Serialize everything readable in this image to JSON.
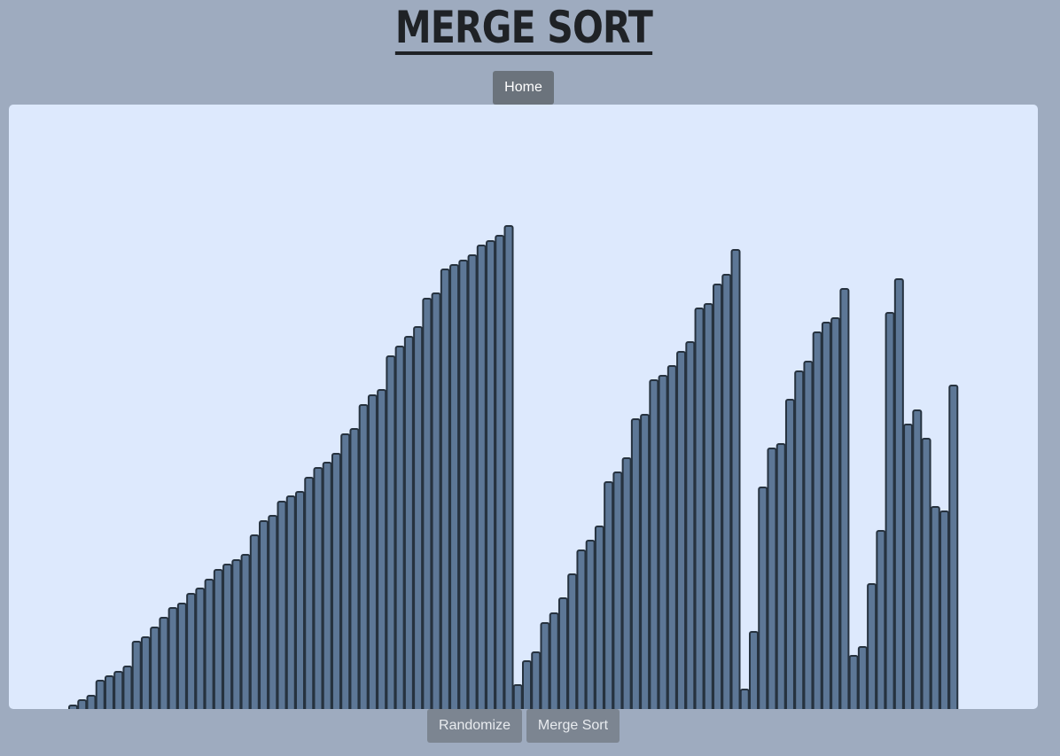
{
  "header": {
    "title": "MERGE SORT"
  },
  "nav": {
    "home_label": "Home"
  },
  "controls": {
    "randomize_label": "Randomize",
    "merge_sort_label": "Merge Sort"
  },
  "colors": {
    "background": "#9eabbf",
    "canvas": "#dde9fd",
    "bar_fill": "#5d7796",
    "bar_stroke": "#26323f"
  },
  "chart_data": {
    "type": "bar",
    "ylim": [
      0,
      682
    ],
    "values": [
      4,
      10,
      15,
      32,
      37,
      42,
      48,
      76,
      81,
      92,
      103,
      114,
      119,
      130,
      136,
      146,
      157,
      163,
      168,
      174,
      196,
      212,
      218,
      234,
      240,
      245,
      261,
      272,
      278,
      288,
      310,
      316,
      343,
      354,
      360,
      398,
      409,
      420,
      431,
      463,
      469,
      496,
      501,
      506,
      512,
      523,
      528,
      534,
      545,
      27,
      54,
      64,
      97,
      108,
      125,
      152,
      179,
      190,
      206,
      256,
      267,
      283,
      327,
      332,
      371,
      376,
      387,
      403,
      414,
      452,
      457,
      479,
      490,
      518,
      22,
      87,
      250,
      294,
      299,
      349,
      381,
      392,
      425,
      436,
      441,
      474,
      60,
      70,
      141,
      201,
      447,
      485,
      321,
      337,
      305,
      228,
      223,
      365
    ]
  }
}
